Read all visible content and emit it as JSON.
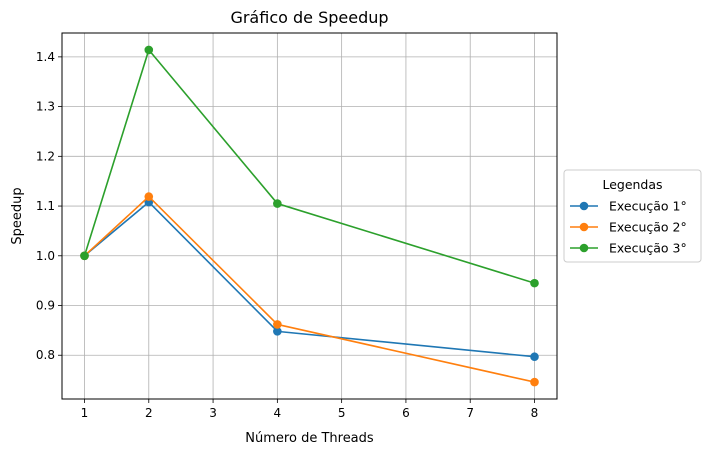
{
  "chart_data": {
    "type": "line",
    "title": "Gráfico de Speedup",
    "xlabel": "Número de Threads",
    "ylabel": "Speedup",
    "xlim": [
      0.65,
      8.35
    ],
    "ylim": [
      0.712,
      1.448
    ],
    "xticks": [
      1,
      2,
      3,
      4,
      5,
      6,
      7,
      8
    ],
    "xtick_labels": [
      "1",
      "2",
      "3",
      "4",
      "5",
      "6",
      "7",
      "8"
    ],
    "yticks": [
      0.8,
      0.9,
      1.0,
      1.1,
      1.2,
      1.3,
      1.4
    ],
    "ytick_labels": [
      "0.8",
      "0.9",
      "1.0",
      "1.1",
      "1.2",
      "1.3",
      "1.4"
    ],
    "grid": true,
    "legend": {
      "title": "Legendas",
      "placement": "outside-right"
    },
    "x": [
      1,
      2,
      4,
      8
    ],
    "series": [
      {
        "name": "Execução 1°",
        "color": "#1f77b4",
        "values": [
          1.0,
          1.108,
          0.848,
          0.797
        ]
      },
      {
        "name": "Execução 2°",
        "color": "#ff7f0e",
        "values": [
          1.0,
          1.119,
          0.862,
          0.746
        ]
      },
      {
        "name": "Execução 3°",
        "color": "#2ca02c",
        "values": [
          1.0,
          1.414,
          1.105,
          0.945
        ]
      }
    ]
  }
}
